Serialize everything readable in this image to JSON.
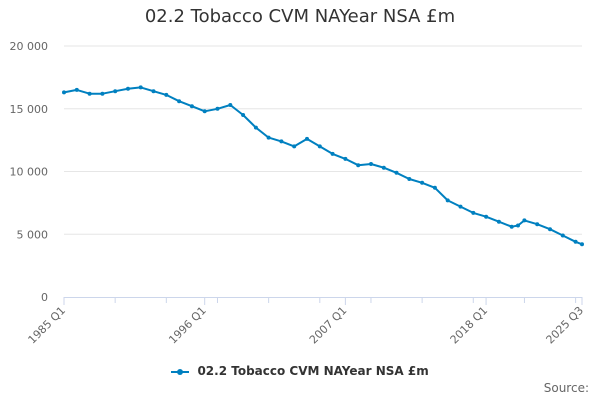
{
  "chart_data": {
    "type": "line",
    "title": "02.2 Tobacco CVM NAYear NSA £m",
    "xlabel": "",
    "ylabel": "",
    "ylim": [
      0,
      20000
    ],
    "yticks": [
      "0",
      "5 000",
      "10 000",
      "15 000",
      "20 000"
    ],
    "ytick_values": [
      0,
      5000,
      10000,
      15000,
      20000
    ],
    "x_tick_labels": [
      "1985 Q1",
      "1996 Q1",
      "2007 Q1",
      "2018 Q1",
      "2025 Q3"
    ],
    "x_start": "1985 Q1",
    "x_end": "2025 Q3",
    "grid": true,
    "legend_position": "bottom",
    "series": [
      {
        "name": "02.2 Tobacco CVM NAYear NSA £m",
        "color": "#0080c0",
        "x": [
          "1985 Q1",
          "1986 Q1",
          "1987 Q1",
          "1988 Q1",
          "1989 Q1",
          "1990 Q1",
          "1991 Q1",
          "1992 Q1",
          "1993 Q1",
          "1994 Q1",
          "1995 Q1",
          "1996 Q1",
          "1997 Q1",
          "1998 Q1",
          "1999 Q1",
          "2000 Q1",
          "2001 Q1",
          "2002 Q1",
          "2003 Q1",
          "2004 Q1",
          "2005 Q1",
          "2006 Q1",
          "2007 Q1",
          "2008 Q1",
          "2009 Q1",
          "2010 Q1",
          "2011 Q1",
          "2012 Q1",
          "2013 Q1",
          "2014 Q1",
          "2015 Q1",
          "2016 Q1",
          "2017 Q1",
          "2018 Q1",
          "2019 Q1",
          "2020 Q1",
          "2020 Q3",
          "2021 Q1",
          "2022 Q1",
          "2023 Q1",
          "2024 Q1",
          "2025 Q1",
          "2025 Q3"
        ],
        "values": [
          16300,
          16500,
          16200,
          16200,
          16400,
          16600,
          16700,
          16400,
          16100,
          15600,
          15200,
          14800,
          15000,
          15300,
          14500,
          13500,
          12700,
          12400,
          12000,
          12600,
          12000,
          11400,
          11000,
          10500,
          10600,
          10300,
          9900,
          9400,
          9100,
          8700,
          7700,
          7200,
          6700,
          6400,
          6000,
          5600,
          5700,
          6100,
          5800,
          5400,
          4900,
          4400,
          4200
        ]
      }
    ],
    "source_label": "Source:"
  }
}
